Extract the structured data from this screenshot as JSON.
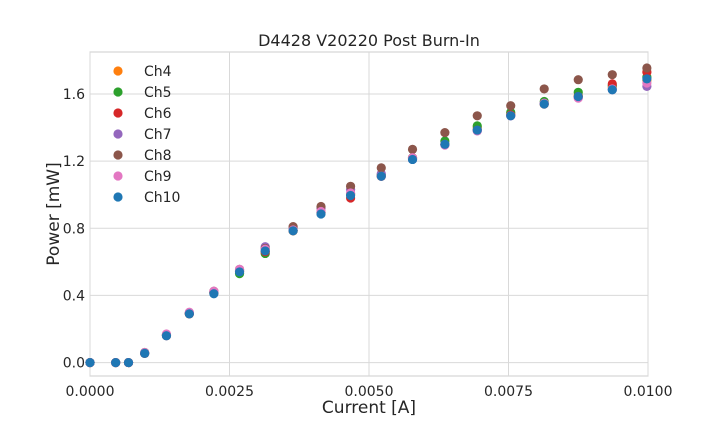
{
  "chart_data": {
    "type": "scatter",
    "title": "D4428 V20220 Post Burn-In",
    "xlabel": "Current [A]",
    "ylabel": "Power [mW]",
    "xlim": [
      0.0,
      0.01
    ],
    "ylim": [
      -0.08,
      1.85
    ],
    "x_ticks": [
      {
        "value": 0.0,
        "label": "0.0000"
      },
      {
        "value": 0.0025,
        "label": "0.0025"
      },
      {
        "value": 0.005,
        "label": "0.0050"
      },
      {
        "value": 0.0075,
        "label": "0.0075"
      },
      {
        "value": 0.01,
        "label": "0.0100"
      }
    ],
    "y_ticks": [
      {
        "value": 0.0,
        "label": "0.0"
      },
      {
        "value": 0.4,
        "label": "0.4"
      },
      {
        "value": 0.8,
        "label": "0.8"
      },
      {
        "value": 1.2,
        "label": "1.2"
      },
      {
        "value": 1.6,
        "label": "1.6"
      }
    ],
    "grid": true,
    "legend_position": "top-left",
    "x": [
      0.0,
      0.00046,
      0.00069,
      0.00098,
      0.00137,
      0.00178,
      0.00222,
      0.00268,
      0.00314,
      0.00364,
      0.00414,
      0.00467,
      0.00522,
      0.00578,
      0.00636,
      0.00694,
      0.00754,
      0.00814,
      0.00875,
      0.00936,
      0.00998
    ],
    "series": [
      {
        "name": "Ch4",
        "color": "#ff7f0e",
        "values": [
          0.0,
          0.0,
          0.0,
          0.055,
          0.165,
          0.29,
          0.415,
          0.54,
          0.66,
          0.785,
          0.895,
          1.0,
          1.11,
          1.22,
          1.3,
          1.4,
          1.48,
          1.54,
          1.59,
          1.64,
          1.68
        ]
      },
      {
        "name": "Ch5",
        "color": "#2ca02c",
        "values": [
          0.0,
          0.0,
          0.0,
          0.06,
          0.165,
          0.295,
          0.42,
          0.53,
          0.65,
          0.785,
          0.895,
          1.005,
          1.12,
          1.22,
          1.32,
          1.41,
          1.49,
          1.555,
          1.61,
          1.65,
          1.7
        ]
      },
      {
        "name": "Ch6",
        "color": "#d62728",
        "values": [
          0.0,
          0.0,
          0.0,
          0.055,
          0.165,
          0.29,
          0.415,
          0.545,
          0.66,
          0.785,
          0.895,
          0.98,
          1.11,
          1.215,
          1.3,
          1.385,
          1.475,
          1.54,
          1.585,
          1.66,
          1.73
        ]
      },
      {
        "name": "Ch7",
        "color": "#9467bd",
        "values": [
          0.0,
          0.0,
          0.0,
          0.055,
          0.16,
          0.295,
          0.42,
          0.55,
          0.69,
          0.8,
          0.92,
          1.03,
          1.125,
          1.21,
          1.3,
          1.38,
          1.47,
          1.545,
          1.58,
          1.625,
          1.645
        ]
      },
      {
        "name": "Ch8",
        "color": "#8c564b",
        "values": [
          0.0,
          0.0,
          0.0,
          0.055,
          0.16,
          0.295,
          0.425,
          0.555,
          0.68,
          0.81,
          0.93,
          1.05,
          1.16,
          1.27,
          1.37,
          1.47,
          1.53,
          1.63,
          1.685,
          1.715,
          1.755
        ]
      },
      {
        "name": "Ch9",
        "color": "#e377c2",
        "values": [
          0.0,
          0.0,
          0.0,
          0.06,
          0.17,
          0.3,
          0.425,
          0.555,
          0.675,
          0.79,
          0.9,
          1.01,
          1.11,
          1.22,
          1.295,
          1.38,
          1.47,
          1.545,
          1.575,
          1.63,
          1.665
        ]
      },
      {
        "name": "Ch10",
        "color": "#1f77b4",
        "values": [
          0.0,
          0.0,
          0.0,
          0.055,
          0.16,
          0.29,
          0.41,
          0.54,
          0.665,
          0.785,
          0.885,
          0.995,
          1.11,
          1.21,
          1.3,
          1.385,
          1.47,
          1.54,
          1.585,
          1.625,
          1.69
        ]
      }
    ]
  }
}
